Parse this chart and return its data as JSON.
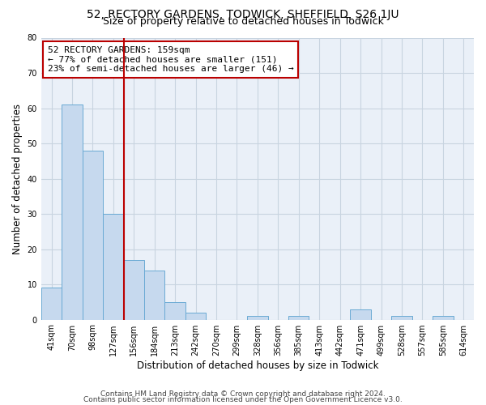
{
  "title": "52, RECTORY GARDENS, TODWICK, SHEFFIELD, S26 1JU",
  "subtitle": "Size of property relative to detached houses in Todwick",
  "xlabel": "Distribution of detached houses by size in Todwick",
  "ylabel": "Number of detached properties",
  "bin_labels": [
    "41sqm",
    "70sqm",
    "98sqm",
    "127sqm",
    "156sqm",
    "184sqm",
    "213sqm",
    "242sqm",
    "270sqm",
    "299sqm",
    "328sqm",
    "356sqm",
    "385sqm",
    "413sqm",
    "442sqm",
    "471sqm",
    "499sqm",
    "528sqm",
    "557sqm",
    "585sqm",
    "614sqm"
  ],
  "bar_values": [
    9,
    61,
    48,
    30,
    17,
    14,
    5,
    2,
    0,
    0,
    1,
    0,
    1,
    0,
    0,
    3,
    0,
    1,
    0,
    1,
    0
  ],
  "bar_color": "#c6d9ee",
  "bar_edge_color": "#6aaad4",
  "property_line_index": 4,
  "property_line_color": "#bb0000",
  "annotation_line1": "52 RECTORY GARDENS: 159sqm",
  "annotation_line2": "← 77% of detached houses are smaller (151)",
  "annotation_line3": "23% of semi-detached houses are larger (46) →",
  "annotation_box_color": "#ffffff",
  "annotation_box_edge_color": "#bb0000",
  "ylim": [
    0,
    80
  ],
  "yticks": [
    0,
    10,
    20,
    30,
    40,
    50,
    60,
    70,
    80
  ],
  "footer_line1": "Contains HM Land Registry data © Crown copyright and database right 2024.",
  "footer_line2": "Contains public sector information licensed under the Open Government Licence v3.0.",
  "background_color": "#ffffff",
  "grid_color": "#c8d4e0",
  "plot_bg_color": "#eaf0f8",
  "title_fontsize": 10,
  "subtitle_fontsize": 9,
  "axis_label_fontsize": 8.5,
  "tick_fontsize": 7,
  "annotation_fontsize": 8,
  "footer_fontsize": 6.5
}
